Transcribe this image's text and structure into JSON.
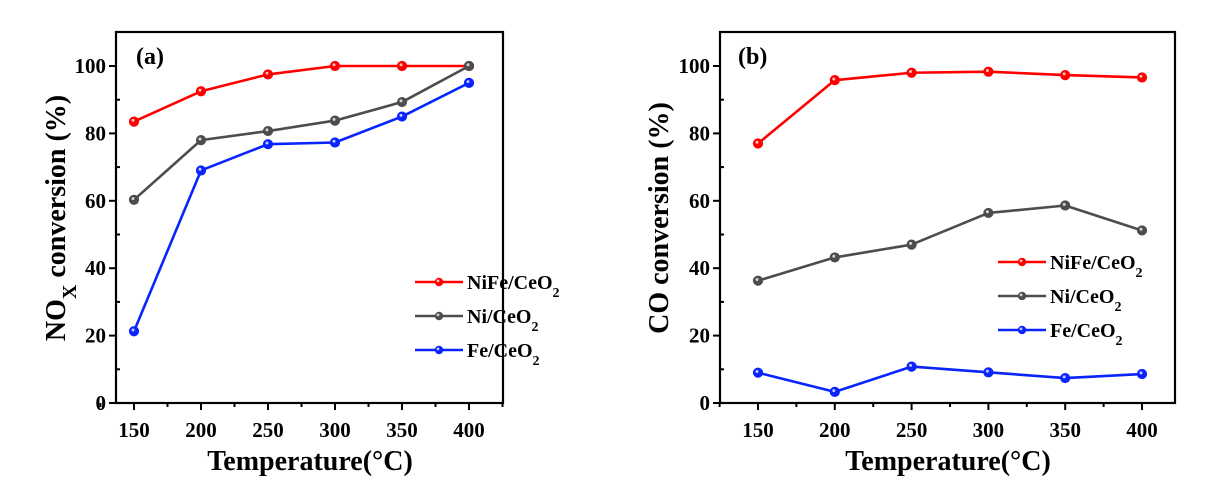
{
  "chart_data": [
    {
      "type": "line",
      "panel_label": "(a)",
      "title": "",
      "xlabel": "Temperature(°C)",
      "ylabel_main": "NO",
      "ylabel_sub": "X",
      "ylabel_rest": " conversion (%)",
      "x": [
        150,
        200,
        250,
        300,
        350,
        400
      ],
      "xticks": [
        "150",
        "200",
        "250",
        "300",
        "350",
        "400"
      ],
      "yticks": [
        "0",
        "20",
        "40",
        "60",
        "80",
        "100"
      ],
      "xlim": [
        125,
        425
      ],
      "ylim": [
        0,
        110
      ],
      "legend_position": "lower-right",
      "series": [
        {
          "name": "NiFe/CeO",
          "sub": "2",
          "color": "#ff0000",
          "values": [
            83.5,
            92.5,
            97.5,
            100,
            100,
            100
          ]
        },
        {
          "name": "Ni/CeO",
          "sub": "2",
          "color": "#4d4d4d",
          "values": [
            60.3,
            78.0,
            80.7,
            83.8,
            89.3,
            100
          ]
        },
        {
          "name": "Fe/CeO",
          "sub": "2",
          "color": "#0a24ff",
          "values": [
            21.3,
            69.0,
            76.8,
            77.3,
            85.0,
            95.0
          ]
        }
      ]
    },
    {
      "type": "line",
      "panel_label": "(b)",
      "title": "",
      "xlabel": "Temperature(°C)",
      "ylabel_main": "CO conversion (%)",
      "ylabel_sub": "",
      "ylabel_rest": "",
      "x": [
        150,
        200,
        250,
        300,
        350,
        400
      ],
      "xticks": [
        "150",
        "200",
        "250",
        "300",
        "350",
        "400"
      ],
      "yticks": [
        "0",
        "20",
        "40",
        "60",
        "80",
        "100"
      ],
      "xlim": [
        125,
        425
      ],
      "ylim": [
        0,
        110
      ],
      "legend_position": "center-right",
      "series": [
        {
          "name": "NiFe/CeO",
          "sub": "2",
          "color": "#ff0000",
          "values": [
            77.0,
            95.8,
            98.0,
            98.3,
            97.3,
            96.6
          ]
        },
        {
          "name": "Ni/CeO",
          "sub": "2",
          "color": "#4d4d4d",
          "values": [
            36.3,
            43.2,
            47.0,
            56.4,
            58.6,
            51.2
          ]
        },
        {
          "name": "Fe/CeO",
          "sub": "2",
          "color": "#0a24ff",
          "values": [
            9.0,
            3.3,
            10.8,
            9.1,
            7.4,
            8.6
          ]
        }
      ]
    }
  ]
}
